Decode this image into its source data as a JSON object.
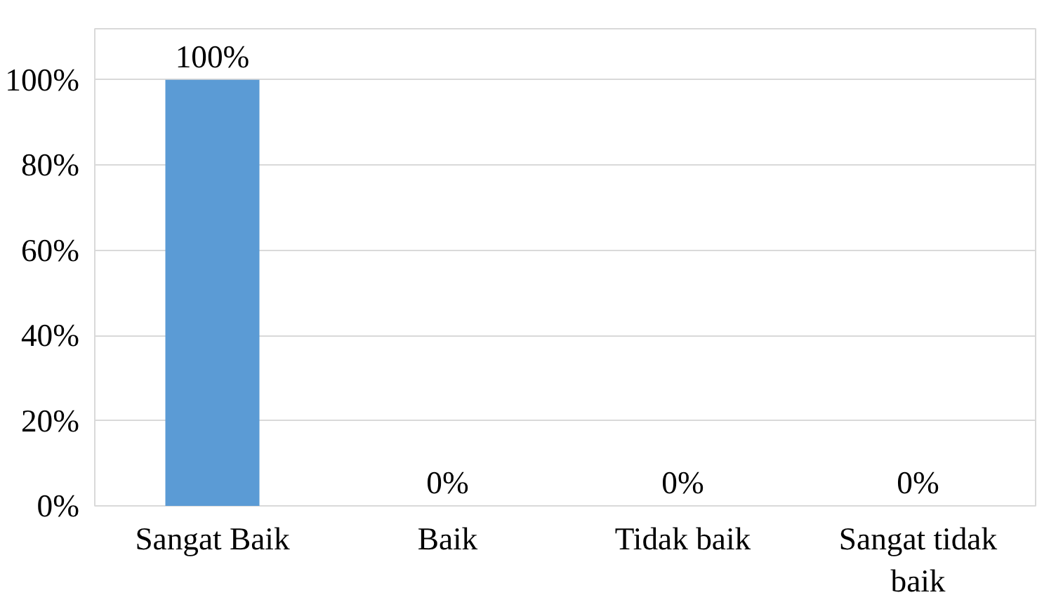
{
  "chart_data": {
    "type": "bar",
    "categories": [
      "Sangat Baik",
      "Baik",
      "Tidak baik",
      "Sangat tidak baik"
    ],
    "values": [
      100,
      0,
      0,
      0
    ],
    "color": "#5b9bd5",
    "value_labels": [
      "100%",
      "0%",
      "0%",
      "0%"
    ],
    "ylim": [
      0,
      112
    ],
    "yticks": [
      {
        "value": 0,
        "label": "0%"
      },
      {
        "value": 20,
        "label": "20%"
      },
      {
        "value": 40,
        "label": "40%"
      },
      {
        "value": 60,
        "label": "60%"
      },
      {
        "value": 80,
        "label": "80%"
      },
      {
        "value": 100,
        "label": "100%"
      }
    ],
    "grid": "y"
  }
}
